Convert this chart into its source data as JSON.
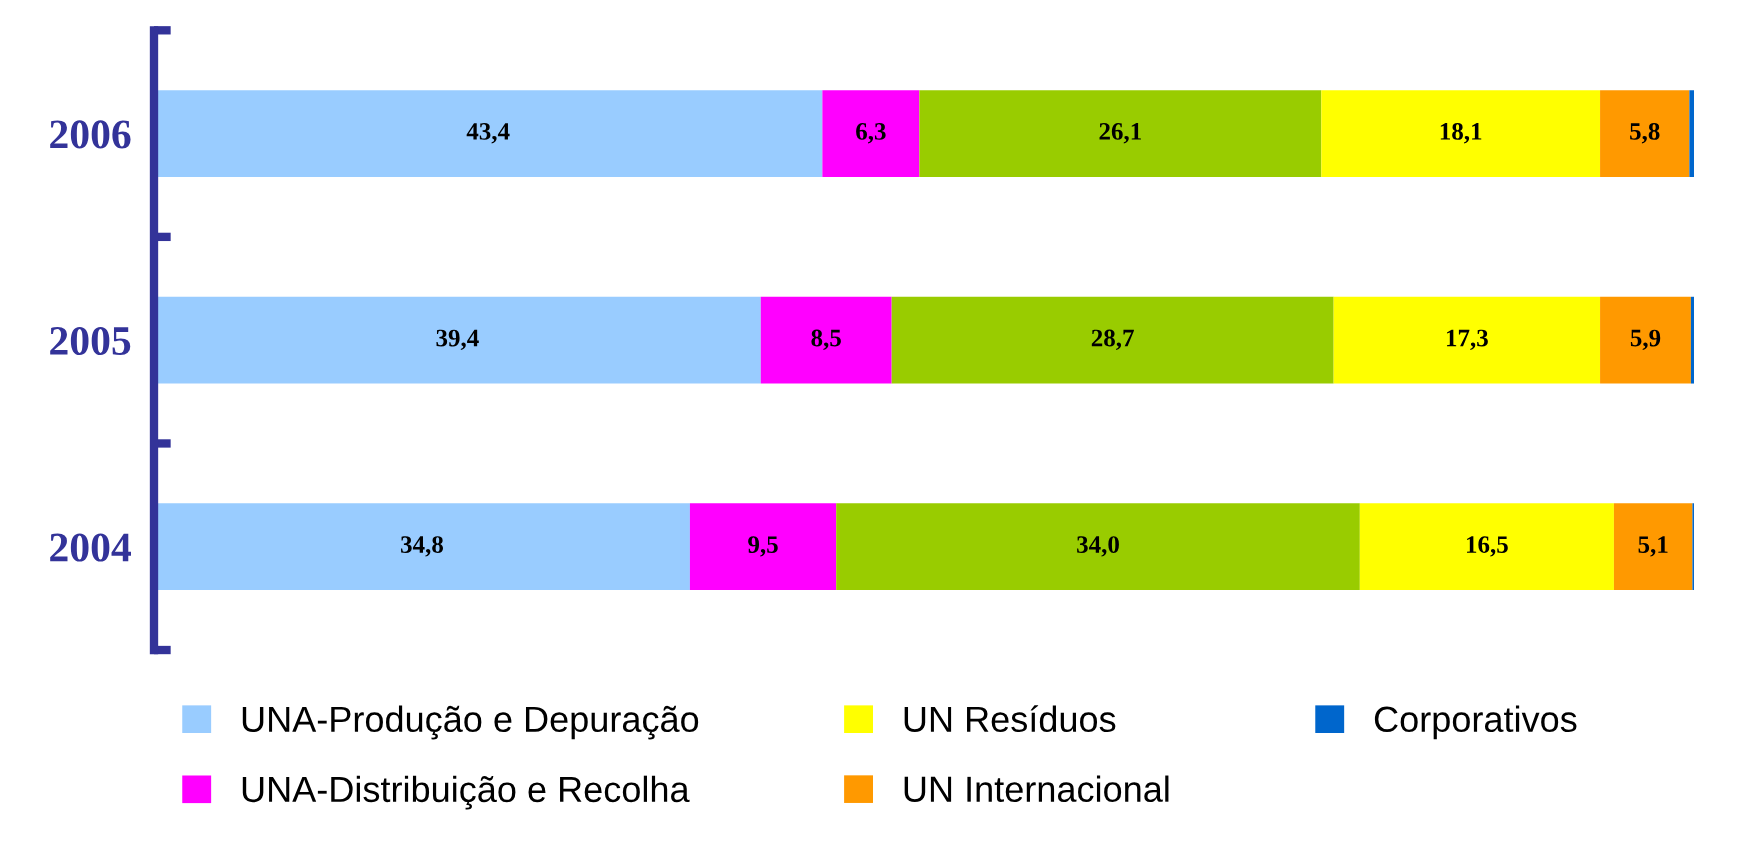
{
  "chart_data": {
    "type": "bar",
    "orientation": "horizontal",
    "stacked": true,
    "categories": [
      "2006",
      "2005",
      "2004"
    ],
    "legend": "bottom",
    "grid": false,
    "series": [
      {
        "name": "UNA-Produção e Depuração",
        "color": "#99ccff",
        "values": [
          43.4,
          39.4,
          34.8
        ],
        "value_labels": [
          "43,4",
          "39,4",
          "34,8"
        ]
      },
      {
        "name": "UNA-Distribuição e Recolha",
        "color": "#ff00ff",
        "values": [
          6.3,
          8.5,
          9.5
        ],
        "value_labels": [
          "6,3",
          "8,5",
          "9,5"
        ]
      },
      {
        "color": "#99cc00",
        "values": [
          26.1,
          28.7,
          34.0
        ],
        "value_labels": [
          "26,1",
          "28,7",
          "34,0"
        ]
      },
      {
        "name": "UN Resíduos",
        "color": "#ffff00",
        "values": [
          18.1,
          17.3,
          16.5
        ],
        "value_labels": [
          "18,1",
          "17,3",
          "16,5"
        ]
      },
      {
        "name": "UN Internacional",
        "color": "#ff9900",
        "values": [
          5.8,
          5.9,
          5.1
        ],
        "value_labels": [
          "5,8",
          "5,9",
          "5,1"
        ]
      },
      {
        "name": "Corporativos",
        "color": "#0066cc",
        "values": [
          0.3,
          0.2,
          0.1
        ],
        "value_labels": [
          null,
          null,
          null
        ]
      }
    ]
  }
}
